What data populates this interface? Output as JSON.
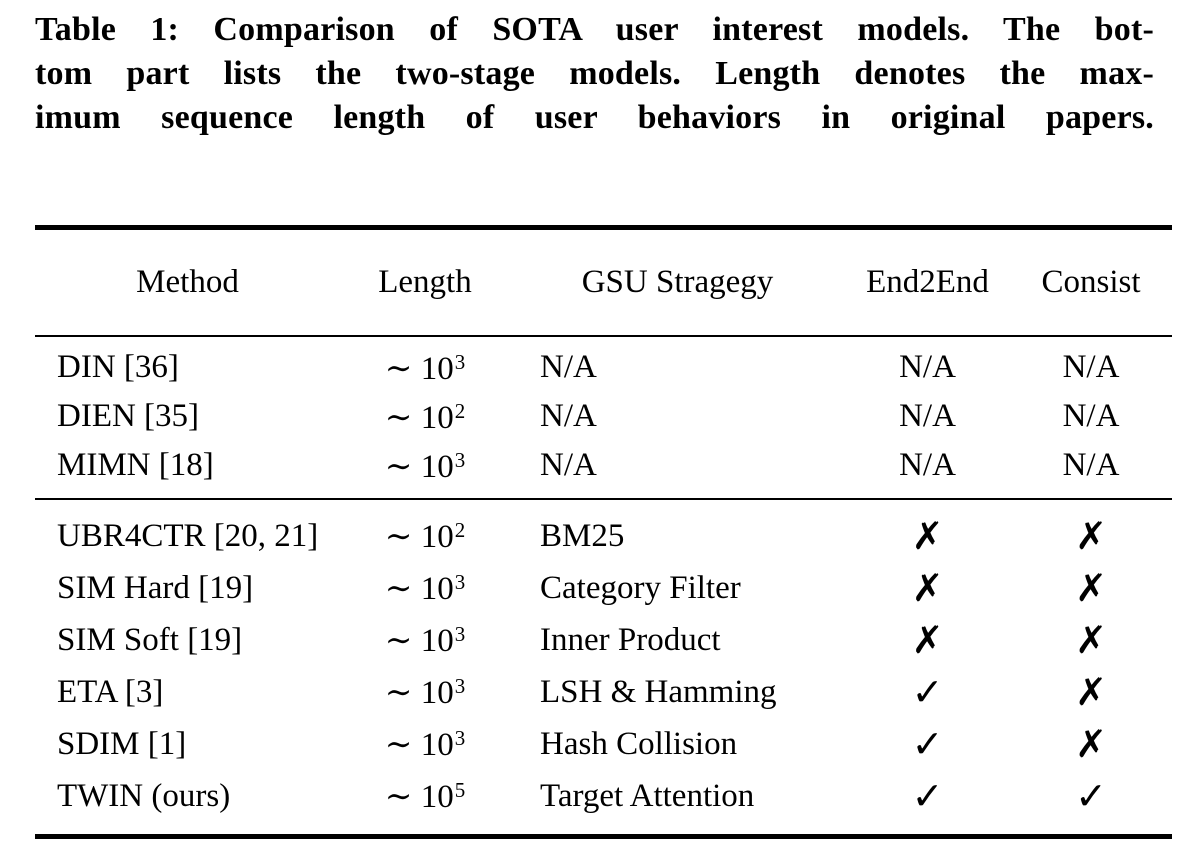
{
  "caption": {
    "lines": [
      "Table 1: Comparison of SOTA user interest models. The bot-",
      "tom part lists the two-stage models. Length denotes the max-",
      "imum sequence length of user behaviors in original papers."
    ]
  },
  "table": {
    "headers": {
      "method": "Method",
      "length": "Length",
      "gsu": "GSU Stragegy",
      "end2end": "End2End",
      "consist": "Consist"
    },
    "rows": [
      {
        "method": "DIN [36]",
        "length_base": "∼ 10",
        "length_exp": "3",
        "gsu": "N/A",
        "end2end": "N/A",
        "consist": "N/A"
      },
      {
        "method": "DIEN [35]",
        "length_base": "∼ 10",
        "length_exp": "2",
        "gsu": "N/A",
        "end2end": "N/A",
        "consist": "N/A"
      },
      {
        "method": "MIMN [18]",
        "length_base": "∼ 10",
        "length_exp": "3",
        "gsu": "N/A",
        "end2end": "N/A",
        "consist": "N/A"
      },
      {
        "method": "UBR4CTR [20, 21]",
        "length_base": "∼ 10",
        "length_exp": "2",
        "gsu": "BM25",
        "end2end": "✗",
        "consist": "✗"
      },
      {
        "method": "SIM Hard [19]",
        "length_base": "∼ 10",
        "length_exp": "3",
        "gsu": "Category Filter",
        "end2end": "✗",
        "consist": "✗"
      },
      {
        "method": "SIM Soft [19]",
        "length_base": "∼ 10",
        "length_exp": "3",
        "gsu": "Inner Product",
        "end2end": "✗",
        "consist": "✗"
      },
      {
        "method": "ETA [3]",
        "length_base": "∼ 10",
        "length_exp": "3",
        "gsu": "LSH & Hamming",
        "end2end": "✓",
        "consist": "✗"
      },
      {
        "method": "SDIM [1]",
        "length_base": "∼ 10",
        "length_exp": "3",
        "gsu": "Hash Collision",
        "end2end": "✓",
        "consist": "✗"
      },
      {
        "method": "TWIN (ours)",
        "length_base": "∼ 10",
        "length_exp": "5",
        "gsu": "Target Attention",
        "end2end": "✓",
        "consist": "✓"
      }
    ],
    "colors": {
      "text": "#000000",
      "background": "#ffffff",
      "rule": "#000000"
    }
  }
}
